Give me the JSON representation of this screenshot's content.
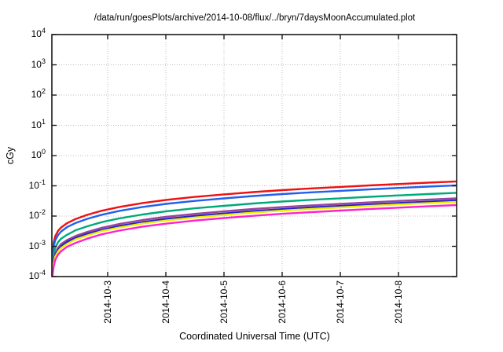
{
  "page": {
    "background": "#ffffff",
    "axis_color": "#1a1a1a",
    "grid_color": "#bcbcbc"
  },
  "chart_data": {
    "type": "line",
    "title": "/data/run/goesPlots/archive/2014-10-08/flux/../bryn/7daysMoonAccumulated.plot",
    "xlabel": "Coordinated Universal Time (UTC)",
    "ylabel": "cGy",
    "y_scale": "log",
    "y_tick_base": "10",
    "y_ticks_exponents": [
      4,
      3,
      2,
      1,
      0,
      -1,
      -2,
      -3,
      -4
    ],
    "ylim_exponents": [
      -4,
      4
    ],
    "x_ticks": [
      {
        "day": 1,
        "label": "2014-10-3"
      },
      {
        "day": 2,
        "label": "2014-10-4"
      },
      {
        "day": 3,
        "label": "2014-10-5"
      },
      {
        "day": 4,
        "label": "2014-10-6"
      },
      {
        "day": 5,
        "label": "2014-10-7"
      },
      {
        "day": 6,
        "label": "2014-10-8"
      }
    ],
    "x_range_days": [
      0.04,
      7.0
    ],
    "grid": true,
    "legend": "none",
    "samples_t_days": [
      0.05,
      0.07,
      0.1,
      0.15,
      0.2,
      0.3,
      0.45,
      0.65,
      0.9,
      1.2,
      1.6,
      2.0,
      2.5,
      3.0,
      3.5,
      4.0,
      4.5,
      5.0,
      5.5,
      6.0,
      6.5,
      7.0
    ],
    "series": [
      {
        "name": "red",
        "color": "#ee1111",
        "values": [
          0.0004,
          0.0013,
          0.0022,
          0.0033,
          0.0042,
          0.0058,
          0.008,
          0.011,
          0.015,
          0.02,
          0.027,
          0.034,
          0.043,
          0.052,
          0.062,
          0.072,
          0.082,
          0.092,
          0.103,
          0.115,
          0.127,
          0.14
        ]
      },
      {
        "name": "blue",
        "color": "#2060ee",
        "values": [
          0.0003,
          0.001,
          0.0016,
          0.0024,
          0.0031,
          0.0043,
          0.0059,
          0.0081,
          0.0111,
          0.0148,
          0.02,
          0.0252,
          0.0318,
          0.0385,
          0.0459,
          0.0533,
          0.0607,
          0.0681,
          0.0762,
          0.0851,
          0.094,
          0.1036
        ]
      },
      {
        "name": "teal",
        "color": "#00aa78",
        "values": [
          0.00022,
          0.00055,
          0.00092,
          0.0014,
          0.0018,
          0.0024,
          0.0034,
          0.0046,
          0.0063,
          0.0084,
          0.0113,
          0.0143,
          0.0181,
          0.0218,
          0.026,
          0.0302,
          0.0344,
          0.0386,
          0.0433,
          0.0483,
          0.0533,
          0.0588
        ]
      },
      {
        "name": "purple",
        "color": "#994499",
        "values": [
          0.00017,
          0.00036,
          0.00061,
          0.00091,
          0.0012,
          0.0016,
          0.0022,
          0.003,
          0.0041,
          0.0055,
          0.0074,
          0.0094,
          0.0118,
          0.0143,
          0.0171,
          0.0198,
          0.0226,
          0.0253,
          0.0283,
          0.0316,
          0.0349,
          0.0385
        ]
      },
      {
        "name": "navy",
        "color": "#2222cc",
        "values": [
          0.00015,
          0.00031,
          0.00052,
          0.00078,
          0.001,
          0.0014,
          0.0019,
          0.0026,
          0.0035,
          0.0047,
          0.0063,
          0.008,
          0.0101,
          0.0122,
          0.0146,
          0.0169,
          0.0193,
          0.0216,
          0.0242,
          0.027,
          0.0298,
          0.0329
        ]
      },
      {
        "name": "yellow",
        "color": "#eeee00",
        "values": [
          0.00013,
          0.00027,
          0.00046,
          0.00069,
          0.00088,
          0.0012,
          0.0017,
          0.0023,
          0.0032,
          0.0042,
          0.0057,
          0.0071,
          0.009,
          0.0109,
          0.013,
          0.0151,
          0.0172,
          0.0193,
          0.0216,
          0.0242,
          0.0267,
          0.0294
        ]
      },
      {
        "name": "magenta",
        "color": "#ff22cc",
        "values": [
          0.0001,
          0.00021,
          0.00036,
          0.00054,
          0.00069,
          0.00096,
          0.0013,
          0.0018,
          0.0025,
          0.0033,
          0.0045,
          0.0056,
          0.0071,
          0.0086,
          0.0102,
          0.0119,
          0.0135,
          0.0152,
          0.017,
          0.019,
          0.021,
          0.0231
        ]
      }
    ]
  }
}
